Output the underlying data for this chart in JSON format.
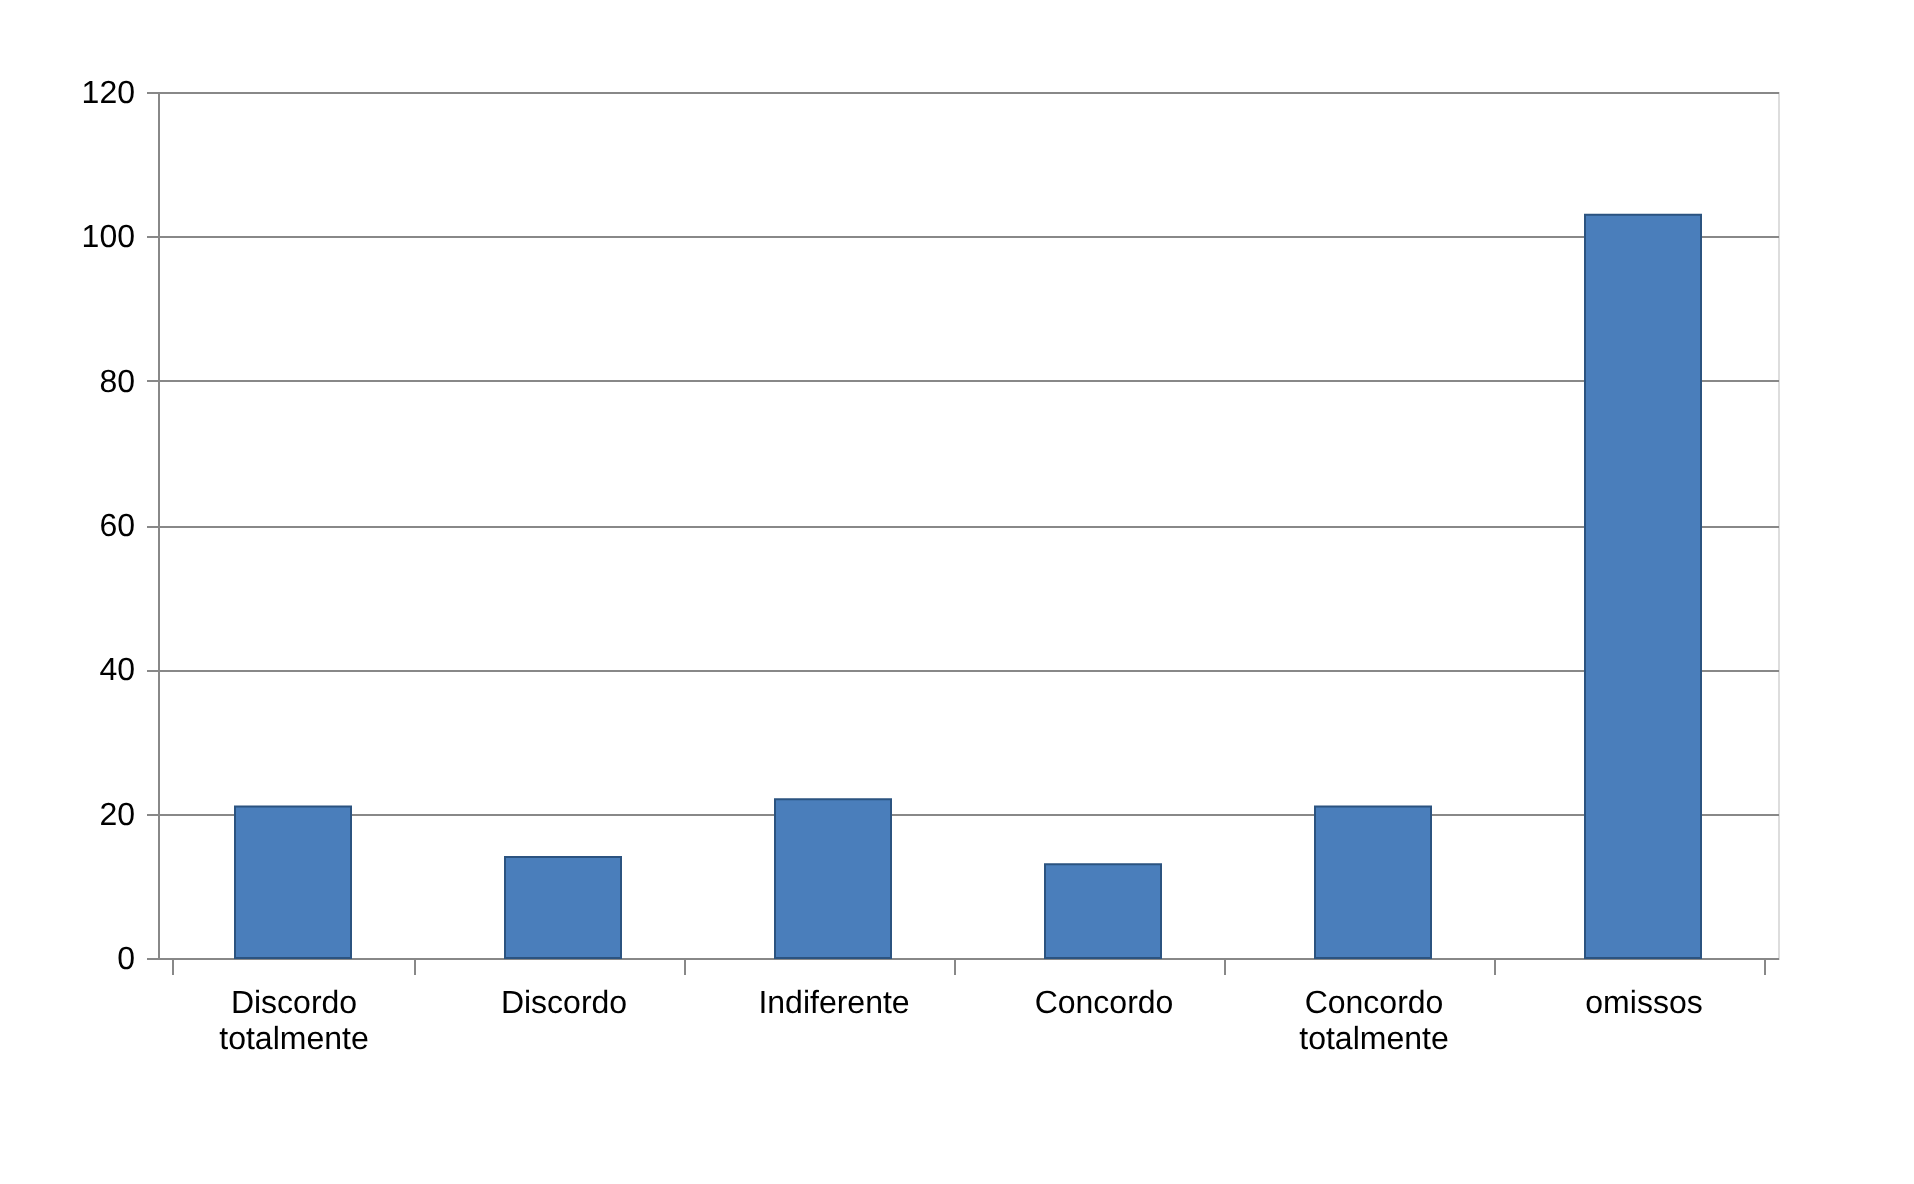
{
  "chart_data": {
    "type": "bar",
    "categories": [
      "Discordo totalmente",
      "Discordo",
      "Indiferente",
      "Concordo",
      "Concordo totalmente",
      "omissos"
    ],
    "values": [
      21,
      14,
      22,
      13,
      21,
      103
    ],
    "color": "#4a7ebb",
    "ylim": [
      0,
      120
    ],
    "yticks": [
      0,
      20,
      40,
      60,
      80,
      100,
      120
    ],
    "grid": "y"
  }
}
